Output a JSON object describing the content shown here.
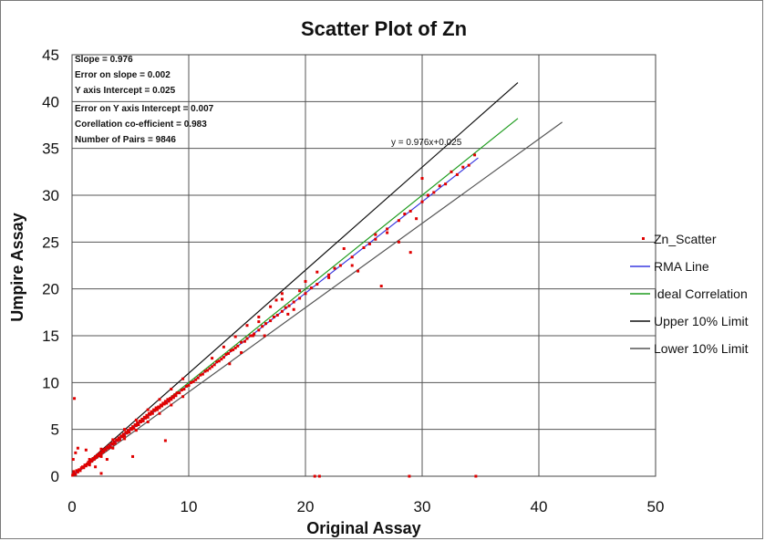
{
  "chart_data": {
    "type": "scatter",
    "title": "Scatter Plot of Zn",
    "xlabel": "Original Assay",
    "ylabel": "Umpire Assay",
    "xlim": [
      0,
      50
    ],
    "ylim": [
      0,
      45
    ],
    "xticks": [
      0,
      10,
      20,
      30,
      40,
      50
    ],
    "yticks": [
      0,
      5,
      10,
      15,
      20,
      25,
      30,
      35,
      40,
      45
    ],
    "grid": true,
    "legend_position": "right",
    "stats": [
      "Slope = 0.976",
      "Error on slope = 0.002",
      "Y axis Intercept = 0.025",
      "Error on Y axis Intercept = 0.007",
      "Corellation co-efficient = 0.983",
      "Number of Pairs = 9846"
    ],
    "equation_label": "y = 0.976x+0.025",
    "series": [
      {
        "name": "Zn_Scatter",
        "kind": "scatter",
        "color": "#e00000",
        "points": [
          [
            0.05,
            0.1
          ],
          [
            0.1,
            0.2
          ],
          [
            0.2,
            0.3
          ],
          [
            0.3,
            0.2
          ],
          [
            0.15,
            0.5
          ],
          [
            0.4,
            0.6
          ],
          [
            0.5,
            0.45
          ],
          [
            0.6,
            0.7
          ],
          [
            0.7,
            0.6
          ],
          [
            0.8,
            0.9
          ],
          [
            0.9,
            1.0
          ],
          [
            1.0,
            0.9
          ],
          [
            1.1,
            1.2
          ],
          [
            1.2,
            1.1
          ],
          [
            1.3,
            1.3
          ],
          [
            1.4,
            1.5
          ],
          [
            1.5,
            1.4
          ],
          [
            1.6,
            1.7
          ],
          [
            1.7,
            1.6
          ],
          [
            1.8,
            1.9
          ],
          [
            1.9,
            1.8
          ],
          [
            2.0,
            2.1
          ],
          [
            2.1,
            2.0
          ],
          [
            2.2,
            2.3
          ],
          [
            2.3,
            2.2
          ],
          [
            2.4,
            2.5
          ],
          [
            2.5,
            2.4
          ],
          [
            2.6,
            2.7
          ],
          [
            2.7,
            2.6
          ],
          [
            2.8,
            2.9
          ],
          [
            2.9,
            2.8
          ],
          [
            3.0,
            3.1
          ],
          [
            3.1,
            3.0
          ],
          [
            3.2,
            3.3
          ],
          [
            3.3,
            3.1
          ],
          [
            3.4,
            3.5
          ],
          [
            3.5,
            3.4
          ],
          [
            3.6,
            3.7
          ],
          [
            3.7,
            3.5
          ],
          [
            3.8,
            3.9
          ],
          [
            3.9,
            3.8
          ],
          [
            4.0,
            4.1
          ],
          [
            4.1,
            3.9
          ],
          [
            4.2,
            4.3
          ],
          [
            4.3,
            4.2
          ],
          [
            4.4,
            4.5
          ],
          [
            4.5,
            4.3
          ],
          [
            4.6,
            4.7
          ],
          [
            4.7,
            4.6
          ],
          [
            4.8,
            4.9
          ],
          [
            4.9,
            4.7
          ],
          [
            5.0,
            5.1
          ],
          [
            5.1,
            5.0
          ],
          [
            5.2,
            5.3
          ],
          [
            5.3,
            5.1
          ],
          [
            5.4,
            5.5
          ],
          [
            5.5,
            5.4
          ],
          [
            5.6,
            5.7
          ],
          [
            5.7,
            5.5
          ],
          [
            5.8,
            5.9
          ],
          [
            5.9,
            5.8
          ],
          [
            6.0,
            6.1
          ],
          [
            6.1,
            5.9
          ],
          [
            6.2,
            6.3
          ],
          [
            6.3,
            6.2
          ],
          [
            6.4,
            6.5
          ],
          [
            6.5,
            6.3
          ],
          [
            6.6,
            6.7
          ],
          [
            6.7,
            6.6
          ],
          [
            6.8,
            6.9
          ],
          [
            6.9,
            6.7
          ],
          [
            7.0,
            7.1
          ],
          [
            7.1,
            7.0
          ],
          [
            7.2,
            7.3
          ],
          [
            7.3,
            7.1
          ],
          [
            7.4,
            7.4
          ],
          [
            7.5,
            7.3
          ],
          [
            7.6,
            7.6
          ],
          [
            7.7,
            7.5
          ],
          [
            7.8,
            7.8
          ],
          [
            7.9,
            7.7
          ],
          [
            8.0,
            8.0
          ],
          [
            8.1,
            7.8
          ],
          [
            8.2,
            8.2
          ],
          [
            8.3,
            8.0
          ],
          [
            8.4,
            8.3
          ],
          [
            8.5,
            8.2
          ],
          [
            8.6,
            8.5
          ],
          [
            8.7,
            8.4
          ],
          [
            8.8,
            8.7
          ],
          [
            8.9,
            8.6
          ],
          [
            9.0,
            8.9
          ],
          [
            9.2,
            8.9
          ],
          [
            9.4,
            9.2
          ],
          [
            9.6,
            9.3
          ],
          [
            9.8,
            9.6
          ],
          [
            10.0,
            9.7
          ],
          [
            10.2,
            10.0
          ],
          [
            10.4,
            10.1
          ],
          [
            10.6,
            10.3
          ],
          [
            10.8,
            10.5
          ],
          [
            11.0,
            10.8
          ],
          [
            11.2,
            10.9
          ],
          [
            11.4,
            11.2
          ],
          [
            11.6,
            11.3
          ],
          [
            11.8,
            11.5
          ],
          [
            12.0,
            11.7
          ],
          [
            12.2,
            11.9
          ],
          [
            12.4,
            12.2
          ],
          [
            12.6,
            12.3
          ],
          [
            12.8,
            12.5
          ],
          [
            13.0,
            12.7
          ],
          [
            13.2,
            13.0
          ],
          [
            13.4,
            13.1
          ],
          [
            13.6,
            13.4
          ],
          [
            13.8,
            13.5
          ],
          [
            14.0,
            13.7
          ],
          [
            14.2,
            13.9
          ],
          [
            14.5,
            14.3
          ],
          [
            14.8,
            14.4
          ],
          [
            15.0,
            14.7
          ],
          [
            15.3,
            15.0
          ],
          [
            15.6,
            15.2
          ],
          [
            16.0,
            15.6
          ],
          [
            16.3,
            16.0
          ],
          [
            16.6,
            16.3
          ],
          [
            17.0,
            16.6
          ],
          [
            17.3,
            17.0
          ],
          [
            17.6,
            17.2
          ],
          [
            18.0,
            17.6
          ],
          [
            18.3,
            18.0
          ],
          [
            18.6,
            18.2
          ],
          [
            19.0,
            18.6
          ],
          [
            19.5,
            19.0
          ],
          [
            20.0,
            19.5
          ],
          [
            20.5,
            20.1
          ],
          [
            21.0,
            20.5
          ],
          [
            22.0,
            21.5
          ],
          [
            23.0,
            22.5
          ],
          [
            24.0,
            23.4
          ],
          [
            25.0,
            24.4
          ],
          [
            26.0,
            25.3
          ],
          [
            27.0,
            26.4
          ],
          [
            28.0,
            27.3
          ],
          [
            29.0,
            28.3
          ],
          [
            30.0,
            29.3
          ],
          [
            31.0,
            30.3
          ],
          [
            32.0,
            31.2
          ],
          [
            33.0,
            32.2
          ],
          [
            34.0,
            33.2
          ],
          [
            1.5,
            1.8
          ],
          [
            2.5,
            2.9
          ],
          [
            3.5,
            3.9
          ],
          [
            4.5,
            5.0
          ],
          [
            5.5,
            6.0
          ],
          [
            6.5,
            7.1
          ],
          [
            7.5,
            8.2
          ],
          [
            8.5,
            9.3
          ],
          [
            9.5,
            10.4
          ],
          [
            1.5,
            1.2
          ],
          [
            2.5,
            2.1
          ],
          [
            3.5,
            3.0
          ],
          [
            4.5,
            4.0
          ],
          [
            5.5,
            4.9
          ],
          [
            6.5,
            5.8
          ],
          [
            7.5,
            6.7
          ],
          [
            8.5,
            7.6
          ],
          [
            9.5,
            8.5
          ],
          [
            12.0,
            12.6
          ],
          [
            13.0,
            13.8
          ],
          [
            14.0,
            14.9
          ],
          [
            15.0,
            16.1
          ],
          [
            16.0,
            17.0
          ],
          [
            17.0,
            18.1
          ],
          [
            18.0,
            19.5
          ],
          [
            13.5,
            12.0
          ],
          [
            14.5,
            13.2
          ],
          [
            16.5,
            15.0
          ],
          [
            18.5,
            17.3
          ],
          [
            19.0,
            17.8
          ],
          [
            0.2,
            8.3
          ],
          [
            0.3,
            2.5
          ],
          [
            0.1,
            1.8
          ],
          [
            0.5,
            3.0
          ],
          [
            1.2,
            2.8
          ],
          [
            2.0,
            1.0
          ],
          [
            3.0,
            1.8
          ],
          [
            8.0,
            3.8
          ],
          [
            5.2,
            2.1
          ],
          [
            2.5,
            0.3
          ],
          [
            20.8,
            0.0
          ],
          [
            21.2,
            0.0
          ],
          [
            28.9,
            0.0
          ],
          [
            34.6,
            0.0
          ],
          [
            26.5,
            20.3
          ],
          [
            29.0,
            23.9
          ],
          [
            30.0,
            31.8
          ],
          [
            23.3,
            24.3
          ],
          [
            21.0,
            21.8
          ],
          [
            22.0,
            21.2
          ],
          [
            24.5,
            21.9
          ],
          [
            25.5,
            24.8
          ],
          [
            26.0,
            25.8
          ],
          [
            27.0,
            26.0
          ],
          [
            28.5,
            28.0
          ],
          [
            29.5,
            27.5
          ],
          [
            30.5,
            30.0
          ],
          [
            31.5,
            31.0
          ],
          [
            32.5,
            32.5
          ],
          [
            33.5,
            33.0
          ],
          [
            34.5,
            34.3
          ],
          [
            28.0,
            25.0
          ],
          [
            24.0,
            22.5
          ],
          [
            22.5,
            22.2
          ],
          [
            19.5,
            19.8
          ],
          [
            18.0,
            18.9
          ],
          [
            17.5,
            18.8
          ],
          [
            20.0,
            20.8
          ],
          [
            16.0,
            16.5
          ],
          [
            15.5,
            15.0
          ]
        ]
      },
      {
        "name": "RMA Line",
        "kind": "line",
        "color": "#3a3ae0",
        "slope": 0.976,
        "intercept": 0.025,
        "x_range": [
          0,
          34.8
        ]
      },
      {
        "name": "Ideal Correlation",
        "kind": "line",
        "color": "#1e9c1e",
        "slope": 1.0,
        "intercept": 0.0,
        "x_range": [
          0,
          38.2
        ]
      },
      {
        "name": "Upper 10% Limit",
        "kind": "line",
        "color": "#111111",
        "slope": 1.1,
        "intercept": 0.0,
        "x_range": [
          0,
          38.2
        ]
      },
      {
        "name": "Lower 10% Limit",
        "kind": "line",
        "color": "#555555",
        "slope": 0.9,
        "intercept": 0.0,
        "x_range": [
          0,
          42.0
        ]
      }
    ]
  }
}
